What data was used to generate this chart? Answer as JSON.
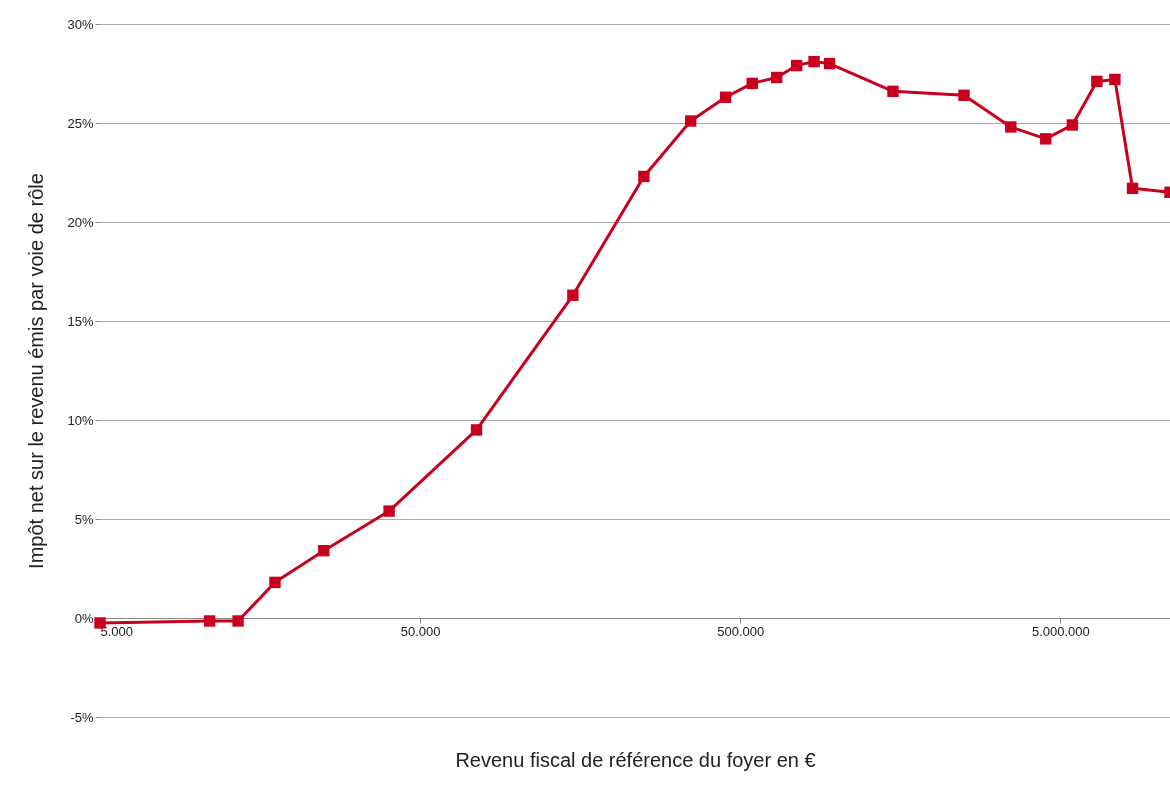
{
  "chart_data": {
    "type": "line",
    "xlabel": "Revenu fiscal de référence du foyer en €",
    "ylabel": "Impôt net sur le revenu émis par voie de rôle",
    "log": "x",
    "grid": "y",
    "marker": "square",
    "line_style": "solid",
    "xlim": [
      5000,
      11000000
    ],
    "xticks": [
      {
        "value": 5000,
        "label": "5.000"
      },
      {
        "value": 50000,
        "label": "50.000"
      },
      {
        "value": 500000,
        "label": "500.000"
      },
      {
        "value": 5000000,
        "label": "5.000.000"
      }
    ],
    "ylim": [
      -5,
      30
    ],
    "yticks": [
      {
        "value": -5,
        "label": "-5%"
      },
      {
        "value": 0,
        "label": "0%"
      },
      {
        "value": 5,
        "label": "5%"
      },
      {
        "value": 10,
        "label": "10%"
      },
      {
        "value": 15,
        "label": "15%"
      },
      {
        "value": 20,
        "label": "20%"
      },
      {
        "value": 25,
        "label": "25%"
      },
      {
        "value": 30,
        "label": "30%"
      }
    ],
    "x": [
      5000,
      11000,
      13500,
      17600,
      25000,
      40000,
      75000,
      150000,
      250000,
      350000,
      450000,
      545000,
      650000,
      750000,
      850000,
      950000,
      1500000,
      2500000,
      3500000,
      4500000,
      5450000,
      6500000,
      7400000,
      8400000,
      11000000
    ],
    "series": [
      {
        "color": "#c8001e",
        "values": [
          -0.25,
          -0.15,
          -0.15,
          1.8,
          3.4,
          5.4,
          9.5,
          16.3,
          22.3,
          25.1,
          26.3,
          27.0,
          27.3,
          27.9,
          28.1,
          28.0,
          26.6,
          26.4,
          24.8,
          24.2,
          24.9,
          27.1,
          27.2,
          21.7,
          21.5
        ]
      }
    ]
  }
}
